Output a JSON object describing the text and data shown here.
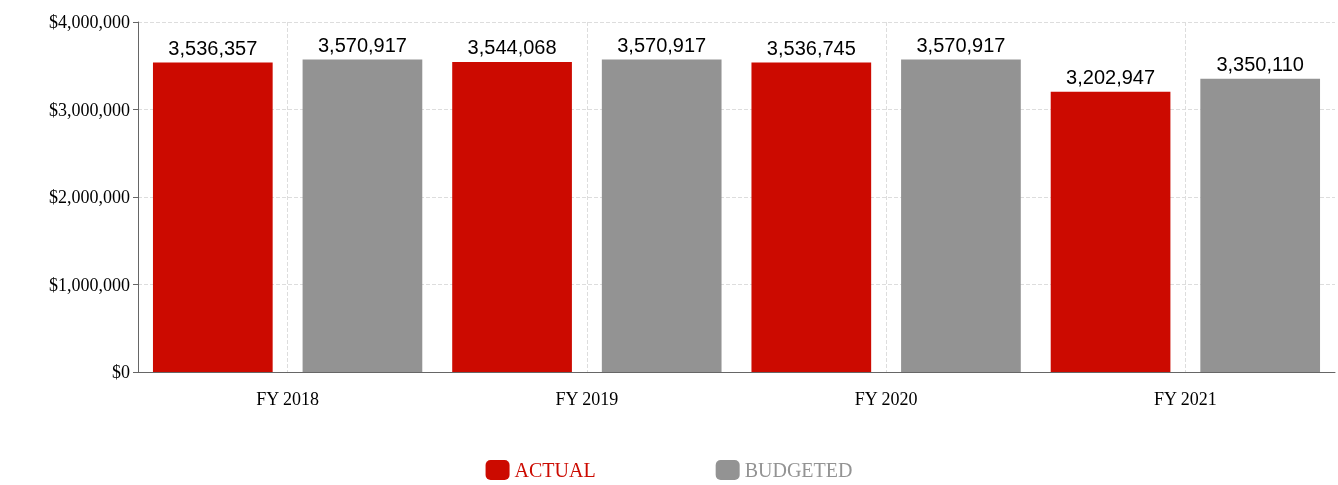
{
  "chart_data": {
    "type": "bar",
    "categories": [
      "FY 2018",
      "FY 2019",
      "FY 2020",
      "FY 2021"
    ],
    "series": [
      {
        "name": "ACTUAL",
        "color": "#cc0a00",
        "values": [
          3536357,
          3544068,
          3536745,
          3202947
        ],
        "value_labels": [
          "3,536,357",
          "3,544,068",
          "3,536,745",
          "3,202,947"
        ]
      },
      {
        "name": "BUDGETED",
        "color": "#939393",
        "values": [
          3570917,
          3570917,
          3570917,
          3350110
        ],
        "value_labels": [
          "3,570,917",
          "3,570,917",
          "3,570,917",
          "3,350,110"
        ]
      }
    ],
    "ylim": [
      0,
      4000000
    ],
    "yticks": [
      {
        "value": 0,
        "label": "$0"
      },
      {
        "value": 1000000,
        "label": "$1,000,000"
      },
      {
        "value": 2000000,
        "label": "$2,000,000"
      },
      {
        "value": 3000000,
        "label": "$3,000,000"
      },
      {
        "value": 4000000,
        "label": "$4,000,000"
      }
    ],
    "grid": true,
    "legend": "bottom"
  }
}
